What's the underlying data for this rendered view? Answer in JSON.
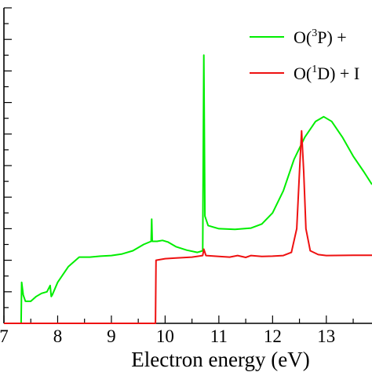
{
  "chart_data": {
    "type": "line",
    "title": "",
    "xlabel": "Electron energy (eV)",
    "ylabel": "",
    "xlim": [
      7.0,
      13.85
    ],
    "ylim": [
      0,
      1.0
    ],
    "x_ticks": [
      "7",
      "8",
      "9",
      "10",
      "11",
      "12",
      "13"
    ],
    "grid": false,
    "legend_placement": "top-right",
    "legend": [
      {
        "prefix": "O(",
        "sup": "3",
        "suffix": "P) +",
        "color": "#00ee00"
      },
      {
        "prefix": "O(",
        "sup": "1",
        "suffix": "D) + I",
        "color": "#ee1111"
      }
    ],
    "series": [
      {
        "name": "O(3P) +",
        "color": "#00ee00",
        "points": [
          [
            7.32,
            0.0
          ],
          [
            7.33,
            0.13
          ],
          [
            7.36,
            0.09
          ],
          [
            7.4,
            0.07
          ],
          [
            7.5,
            0.07
          ],
          [
            7.6,
            0.085
          ],
          [
            7.7,
            0.095
          ],
          [
            7.8,
            0.1
          ],
          [
            7.86,
            0.12
          ],
          [
            7.88,
            0.085
          ],
          [
            7.9,
            0.09
          ],
          [
            8.0,
            0.13
          ],
          [
            8.2,
            0.18
          ],
          [
            8.4,
            0.21
          ],
          [
            8.6,
            0.21
          ],
          [
            8.8,
            0.213
          ],
          [
            9.0,
            0.215
          ],
          [
            9.2,
            0.22
          ],
          [
            9.4,
            0.23
          ],
          [
            9.6,
            0.25
          ],
          [
            9.74,
            0.26
          ],
          [
            9.75,
            0.33
          ],
          [
            9.76,
            0.26
          ],
          [
            9.85,
            0.26
          ],
          [
            9.95,
            0.263
          ],
          [
            10.05,
            0.258
          ],
          [
            10.2,
            0.243
          ],
          [
            10.4,
            0.232
          ],
          [
            10.6,
            0.225
          ],
          [
            10.7,
            0.23
          ],
          [
            10.72,
            0.85
          ],
          [
            10.74,
            0.34
          ],
          [
            10.8,
            0.31
          ],
          [
            11.0,
            0.3
          ],
          [
            11.3,
            0.298
          ],
          [
            11.6,
            0.302
          ],
          [
            11.8,
            0.315
          ],
          [
            12.0,
            0.35
          ],
          [
            12.2,
            0.42
          ],
          [
            12.4,
            0.52
          ],
          [
            12.6,
            0.59
          ],
          [
            12.8,
            0.64
          ],
          [
            12.95,
            0.655
          ],
          [
            13.1,
            0.64
          ],
          [
            13.3,
            0.59
          ],
          [
            13.5,
            0.53
          ],
          [
            13.7,
            0.48
          ],
          [
            13.85,
            0.44
          ]
        ]
      },
      {
        "name": "O(1D) + I",
        "color": "#ee1111",
        "points": [
          [
            7.0,
            0.0
          ],
          [
            9.82,
            0.0
          ],
          [
            9.83,
            0.2
          ],
          [
            10.0,
            0.205
          ],
          [
            10.2,
            0.207
          ],
          [
            10.5,
            0.21
          ],
          [
            10.7,
            0.215
          ],
          [
            10.72,
            0.235
          ],
          [
            10.76,
            0.215
          ],
          [
            11.0,
            0.212
          ],
          [
            11.2,
            0.21
          ],
          [
            11.35,
            0.215
          ],
          [
            11.5,
            0.209
          ],
          [
            11.6,
            0.215
          ],
          [
            11.8,
            0.212
          ],
          [
            12.0,
            0.213
          ],
          [
            12.2,
            0.215
          ],
          [
            12.35,
            0.225
          ],
          [
            12.45,
            0.3
          ],
          [
            12.5,
            0.48
          ],
          [
            12.54,
            0.61
          ],
          [
            12.58,
            0.48
          ],
          [
            12.62,
            0.3
          ],
          [
            12.7,
            0.23
          ],
          [
            12.85,
            0.218
          ],
          [
            13.0,
            0.215
          ],
          [
            13.5,
            0.216
          ],
          [
            13.85,
            0.216
          ]
        ]
      }
    ]
  }
}
